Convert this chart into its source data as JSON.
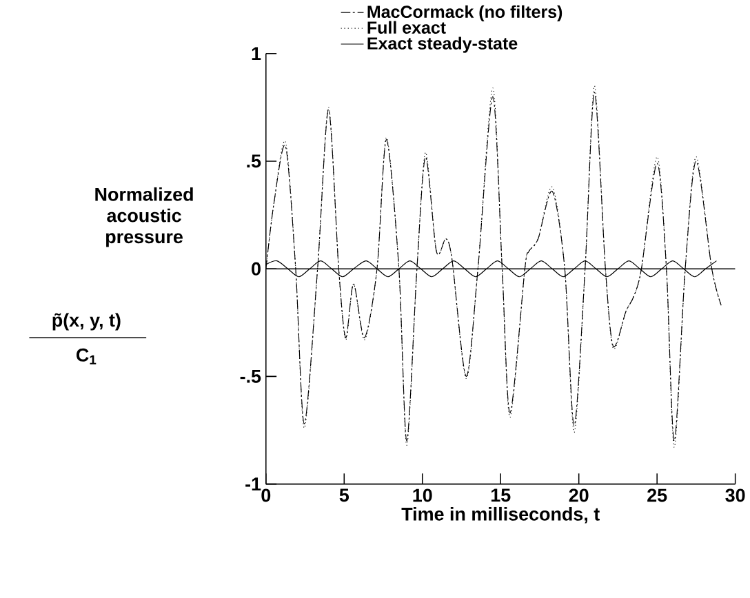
{
  "chart_data": {
    "type": "line",
    "xlabel": "Time in milliseconds, t",
    "ylabel": "Normalized acoustic pressure",
    "annotations": [
      "p̃(x, y, t)",
      "C$_{1}$"
    ],
    "xlim": [
      0,
      30
    ],
    "xticks": [
      0,
      5,
      10,
      15,
      20,
      25,
      30
    ],
    "ylim": [
      -1,
      1
    ],
    "yticks": [
      {
        "value": -1,
        "label": "-1"
      },
      {
        "value": -0.5,
        "label": "-.5"
      },
      0,
      {
        "value": 0.5,
        "label": ".5"
      },
      1
    ],
    "legend": "top",
    "grid": false,
    "marker": "none",
    "ref_lines": [
      {
        "axis": "y",
        "value": 0,
        "color": "#000000",
        "line_style": "solid"
      }
    ],
    "series": [
      {
        "name": "MacCormack (no filters)",
        "color": "#000000",
        "line_style": "dashed",
        "x": [
          0,
          0.5,
          1.25,
          1.9,
          2.45,
          3.3,
          4.0,
          4.65,
          5.1,
          5.6,
          6.3,
          7.1,
          7.7,
          8.5,
          9.0,
          9.65,
          10.2,
          10.9,
          11.5,
          11.9,
          12.8,
          13.55,
          14.5,
          15.1,
          15.6,
          16.55,
          16.8,
          17.4,
          18.3,
          19.1,
          19.7,
          20.4,
          21.0,
          21.7,
          22.2,
          23.0,
          23.5,
          24.0,
          25.0,
          25.6,
          26.1,
          26.8,
          27.5,
          28.5,
          29.1
        ],
        "values": [
          0,
          0.3,
          0.57,
          0,
          -0.72,
          0,
          0.74,
          0,
          -0.32,
          -0.07,
          -0.32,
          0,
          0.6,
          0,
          -0.8,
          0,
          0.52,
          0.08,
          0.14,
          0.04,
          -0.5,
          0,
          0.8,
          0,
          -0.67,
          0,
          0.08,
          0.14,
          0.36,
          0,
          -0.73,
          0,
          0.82,
          0,
          -0.36,
          -0.2,
          -0.13,
          0,
          0.49,
          0,
          -0.8,
          0,
          0.5,
          0,
          -0.17
        ]
      },
      {
        "name": "Full exact",
        "color": "#000000",
        "line_style": "dotted",
        "x": [
          0,
          0.5,
          1.25,
          1.9,
          2.45,
          3.3,
          4.0,
          4.65,
          5.1,
          5.6,
          6.3,
          7.1,
          7.7,
          8.5,
          9.0,
          9.65,
          10.2,
          10.9,
          11.5,
          11.9,
          12.8,
          13.55,
          14.5,
          15.1,
          15.6,
          16.55,
          16.8,
          17.4,
          18.3,
          19.1,
          19.7,
          20.4,
          21.0,
          21.7,
          22.2,
          23.0,
          23.5,
          24.0,
          25.0,
          25.6,
          26.1,
          26.8,
          27.5,
          28.5,
          29.1
        ],
        "values": [
          0,
          0.3,
          0.59,
          0,
          -0.74,
          0,
          0.75,
          0,
          -0.33,
          -0.07,
          -0.33,
          0,
          0.61,
          0,
          -0.82,
          0,
          0.54,
          0.08,
          0.14,
          0.04,
          -0.51,
          0,
          0.84,
          0,
          -0.69,
          0,
          0.08,
          0.14,
          0.38,
          0,
          -0.76,
          0,
          0.85,
          0,
          -0.37,
          -0.2,
          -0.13,
          0,
          0.52,
          0,
          -0.83,
          0,
          0.52,
          0,
          -0.17
        ]
      },
      {
        "name": "Exact steady-state",
        "color": "#000000",
        "line_style": "solid",
        "x": [
          0,
          0.7,
          1.4,
          2.1,
          2.8,
          3.5,
          4.2,
          4.9,
          5.6,
          6.4,
          7.1,
          7.8,
          8.5,
          9.2,
          9.9,
          10.6,
          11.3,
          12.0,
          12.7,
          13.4,
          14.1,
          14.8,
          15.5,
          16.2,
          16.9,
          17.6,
          18.3,
          19.0,
          19.7,
          20.4,
          21.1,
          21.8,
          22.5,
          23.2,
          23.9,
          24.6,
          25.3,
          26.0,
          26.7,
          27.4,
          28.1,
          28.8
        ],
        "values": [
          0.02,
          0.037,
          0,
          -0.037,
          0,
          0.037,
          0,
          -0.037,
          0,
          0.037,
          0,
          -0.037,
          0,
          0.037,
          0,
          -0.037,
          0,
          0.037,
          0,
          -0.037,
          0,
          0.037,
          0,
          -0.037,
          0,
          0.037,
          0,
          -0.037,
          0,
          0.037,
          0,
          -0.037,
          0,
          0.037,
          0,
          -0.037,
          0,
          0.037,
          0,
          -0.037,
          0,
          0.037
        ]
      }
    ]
  }
}
